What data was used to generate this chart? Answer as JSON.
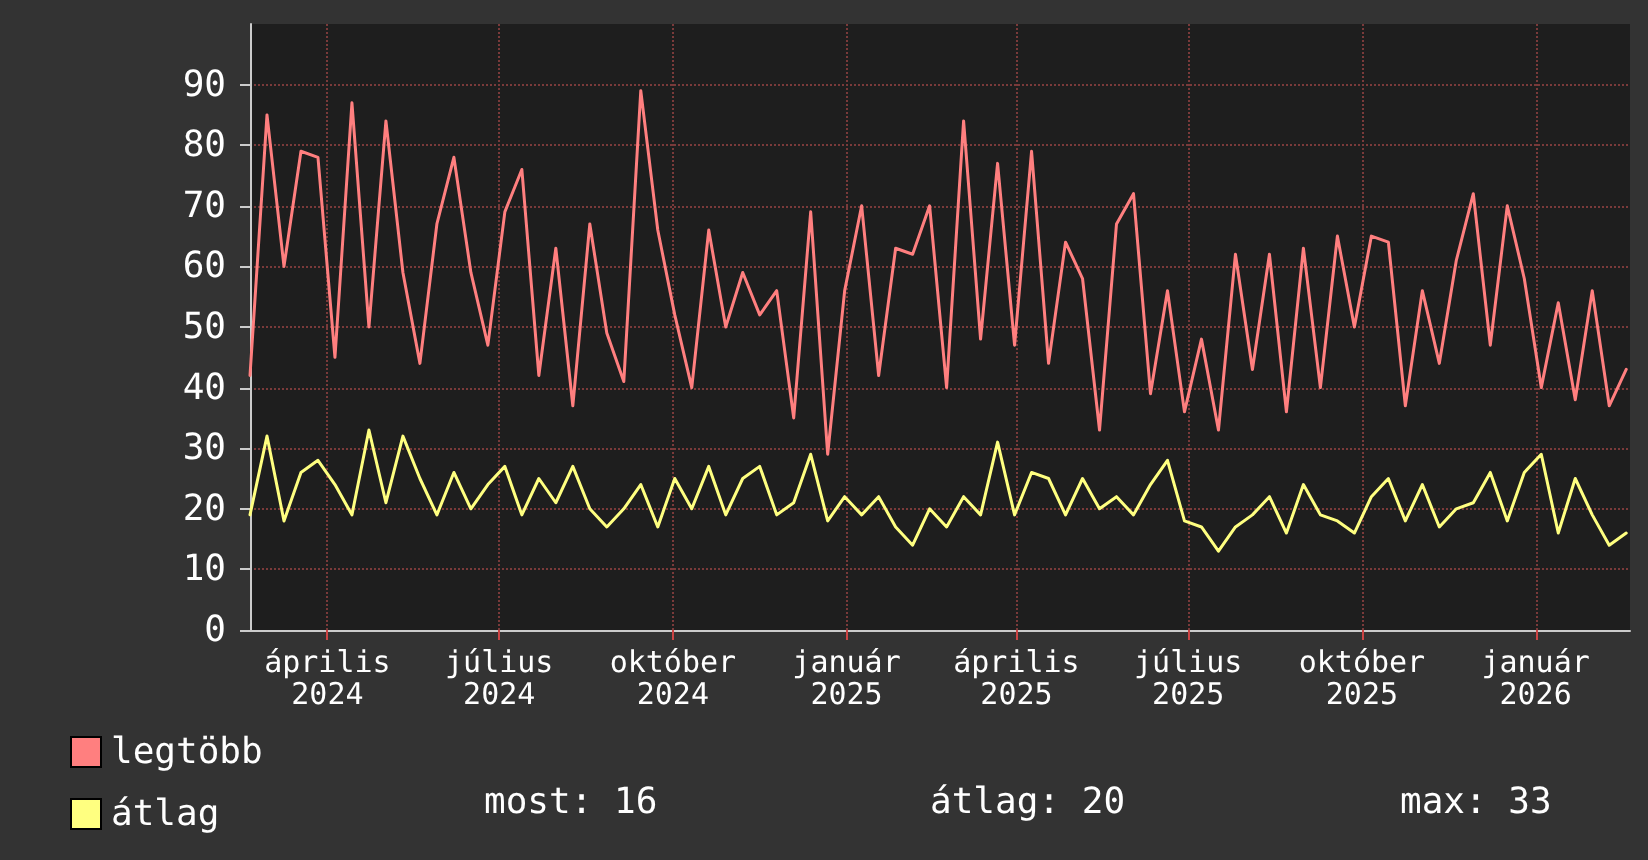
{
  "chart_data": {
    "type": "line",
    "x": [
      "2024-02-20",
      "2024-02-29",
      "2024-03-09",
      "2024-03-18",
      "2024-03-27",
      "2024-04-05",
      "2024-04-14",
      "2024-04-23",
      "2024-05-02",
      "2024-05-11",
      "2024-05-20",
      "2024-05-29",
      "2024-06-07",
      "2024-06-16",
      "2024-06-25",
      "2024-07-04",
      "2024-07-13",
      "2024-07-22",
      "2024-07-31",
      "2024-08-09",
      "2024-08-18",
      "2024-08-27",
      "2024-09-05",
      "2024-09-14",
      "2024-09-23",
      "2024-10-02",
      "2024-10-11",
      "2024-10-20",
      "2024-10-29",
      "2024-11-07",
      "2024-11-16",
      "2024-11-25",
      "2024-12-04",
      "2024-12-13",
      "2024-12-22",
      "2024-12-31",
      "2025-01-09",
      "2025-01-18",
      "2025-01-27",
      "2025-02-05",
      "2025-02-14",
      "2025-02-23",
      "2025-03-04",
      "2025-03-13",
      "2025-03-22",
      "2025-03-31",
      "2025-04-09",
      "2025-04-18",
      "2025-04-27",
      "2025-05-06",
      "2025-05-15",
      "2025-05-24",
      "2025-06-02",
      "2025-06-11",
      "2025-06-20",
      "2025-06-29",
      "2025-07-08",
      "2025-07-17",
      "2025-07-26",
      "2025-08-04",
      "2025-08-13",
      "2025-08-22",
      "2025-08-31",
      "2025-09-09",
      "2025-09-18",
      "2025-09-27",
      "2025-10-06",
      "2025-10-15",
      "2025-10-24",
      "2025-11-02",
      "2025-11-11",
      "2025-11-20",
      "2025-11-29",
      "2025-12-08",
      "2025-12-17",
      "2025-12-26",
      "2026-01-04",
      "2026-01-13",
      "2026-01-22",
      "2026-01-31",
      "2026-02-09",
      "2026-02-18"
    ],
    "series": [
      {
        "name": "legtöbb",
        "color": "#ff7f7f",
        "values": [
          42,
          85,
          60,
          79,
          78,
          45,
          87,
          50,
          84,
          59,
          44,
          67,
          78,
          59,
          47,
          69,
          76,
          42,
          63,
          37,
          67,
          49,
          41,
          89,
          66,
          52,
          40,
          66,
          50,
          59,
          52,
          56,
          35,
          69,
          29,
          56,
          70,
          42,
          63,
          62,
          70,
          40,
          84,
          48,
          77,
          47,
          79,
          44,
          64,
          58,
          33,
          67,
          72,
          39,
          56,
          36,
          48,
          33,
          62,
          43,
          62,
          36,
          63,
          40,
          65,
          50,
          65,
          64,
          37,
          56,
          44,
          61,
          72,
          47,
          70,
          58,
          40,
          54,
          38,
          56,
          37,
          43
        ]
      },
      {
        "name": "átlag",
        "color": "#ffff80",
        "values": [
          19,
          32,
          18,
          26,
          28,
          24,
          19,
          33,
          21,
          32,
          25,
          19,
          26,
          20,
          24,
          27,
          19,
          25,
          21,
          27,
          20,
          17,
          20,
          24,
          17,
          25,
          20,
          27,
          19,
          25,
          27,
          19,
          21,
          29,
          18,
          22,
          19,
          22,
          17,
          14,
          20,
          17,
          22,
          19,
          31,
          19,
          26,
          25,
          19,
          25,
          20,
          22,
          19,
          24,
          28,
          18,
          17,
          13,
          17,
          19,
          22,
          16,
          24,
          19,
          18,
          16,
          22,
          25,
          18,
          24,
          17,
          20,
          21,
          26,
          18,
          26,
          29,
          16,
          25,
          19,
          14,
          16
        ]
      }
    ],
    "xlim": [
      "2024-02-20",
      "2026-02-20"
    ],
    "xticks": [
      {
        "value": "2024-04-01",
        "label": "április 2024"
      },
      {
        "value": "2024-07-01",
        "label": "július 2024"
      },
      {
        "value": "2024-10-01",
        "label": "október 2024"
      },
      {
        "value": "2025-01-01",
        "label": "január 2025"
      },
      {
        "value": "2025-04-01",
        "label": "április 2025"
      },
      {
        "value": "2025-07-01",
        "label": "július 2025"
      },
      {
        "value": "2025-10-01",
        "label": "október 2025"
      },
      {
        "value": "2026-01-01",
        "label": "január 2026"
      }
    ],
    "ylim": [
      0,
      100
    ],
    "yticks": [
      0,
      10,
      20,
      30,
      40,
      50,
      60,
      70,
      80,
      90
    ],
    "grid": true,
    "legend": "bottom",
    "marker": "none",
    "line_style": "solid",
    "annotations": [
      "most: 16",
      "átlag: 20",
      "max: 33"
    ]
  }
}
